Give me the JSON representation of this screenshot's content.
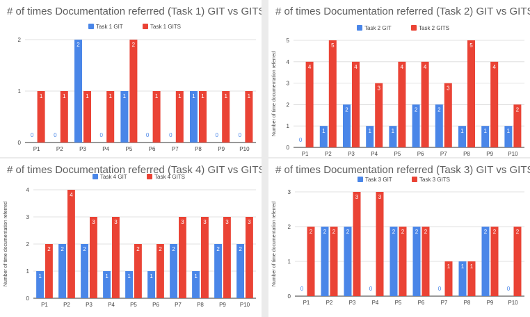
{
  "colors": {
    "git": "#4a86e8",
    "gits": "#ea4335",
    "grid": "#d9d9d9",
    "axis": "#333333",
    "label": "#444444"
  },
  "chart_data": [
    {
      "id": "task1",
      "type": "bar",
      "title": "# of times Documentation referred (Task 1) GIT vs GITS",
      "ylabel": "",
      "categories": [
        "P1",
        "P2",
        "P3",
        "P4",
        "P5",
        "P6",
        "P7",
        "P8",
        "P9",
        "P10"
      ],
      "series": [
        {
          "name": "Task 1 GIT",
          "values": [
            0,
            0,
            2,
            0,
            1,
            0,
            0,
            1,
            0,
            0
          ]
        },
        {
          "name": "Task 1 GITS",
          "values": [
            1,
            1,
            1,
            1,
            2,
            1,
            1,
            1,
            1,
            1
          ]
        }
      ],
      "ylim": [
        0,
        2
      ],
      "yticks": [
        0,
        1,
        2
      ],
      "grid": true,
      "legend": "top"
    },
    {
      "id": "task2",
      "type": "bar",
      "title": "# of times Documentation referred (Task 2) GIT vs GITS",
      "ylabel": "Number of time documentation referred",
      "categories": [
        "P1",
        "P2",
        "P3",
        "P4",
        "P5",
        "P6",
        "P7",
        "P8",
        "P9",
        "P10"
      ],
      "series": [
        {
          "name": "Task 2 GIT",
          "values": [
            0,
            1,
            2,
            1,
            1,
            2,
            2,
            1,
            1,
            1
          ]
        },
        {
          "name": "Task 2 GITS",
          "values": [
            4,
            5,
            4,
            3,
            4,
            4,
            3,
            5,
            4,
            2
          ]
        }
      ],
      "ylim": [
        0,
        5
      ],
      "yticks": [
        0,
        1,
        2,
        3,
        4,
        5
      ],
      "grid": true,
      "legend": "top"
    },
    {
      "id": "task4",
      "type": "bar",
      "title": "# of times Documentation referred (Task 4) GIT vs GITS",
      "ylabel": "Number of time documentation referred",
      "categories": [
        "P1",
        "P2",
        "P3",
        "P4",
        "P5",
        "P6",
        "P7",
        "P8",
        "P9",
        "P10"
      ],
      "series": [
        {
          "name": "Task 4 GIT",
          "values": [
            1,
            2,
            2,
            1,
            1,
            1,
            2,
            1,
            2,
            2
          ]
        },
        {
          "name": "Task 4 GITS",
          "values": [
            2,
            4,
            3,
            3,
            2,
            2,
            3,
            3,
            3,
            3
          ]
        }
      ],
      "ylim": [
        0,
        4
      ],
      "yticks": [
        0,
        1,
        2,
        3,
        4
      ],
      "grid": true,
      "legend": "top"
    },
    {
      "id": "task3",
      "type": "bar",
      "title": "# of times Documentation referred (Task 3) GIT vs GITS",
      "ylabel": "Number of time documentation referred",
      "categories": [
        "P1",
        "P2",
        "P3",
        "P4",
        "P5",
        "P6",
        "P7",
        "P8",
        "P9",
        "P10"
      ],
      "series": [
        {
          "name": "Task 3 GIT",
          "values": [
            0,
            2,
            2,
            0,
            2,
            2,
            0,
            1,
            2,
            0
          ]
        },
        {
          "name": "Task 3 GITS",
          "values": [
            2,
            2,
            3,
            3,
            2,
            2,
            1,
            1,
            2,
            2
          ]
        }
      ],
      "ylim": [
        0,
        3
      ],
      "yticks": [
        0,
        1,
        2,
        3
      ],
      "grid": true,
      "legend": "top"
    }
  ]
}
